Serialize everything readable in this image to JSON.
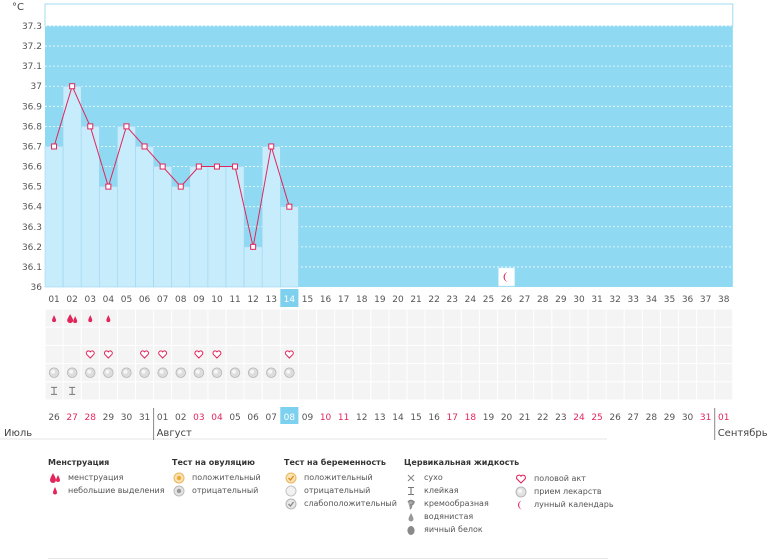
{
  "unit_label": "°C",
  "y_axis": {
    "ticks": [
      "37.3",
      "37.2",
      "37.1",
      "37",
      "36.9",
      "36.8",
      "36.7",
      "36.6",
      "36.5",
      "36.4",
      "36.3",
      "36.2",
      "36.1",
      "36"
    ],
    "min": 36,
    "max": 37.3
  },
  "cycle_days": [
    "01",
    "02",
    "03",
    "04",
    "05",
    "06",
    "07",
    "08",
    "09",
    "10",
    "11",
    "12",
    "13",
    "14",
    "15",
    "16",
    "17",
    "18",
    "19",
    "20",
    "21",
    "22",
    "23",
    "24",
    "25",
    "26",
    "27",
    "28",
    "29",
    "30",
    "31",
    "32",
    "33",
    "34",
    "35",
    "36",
    "37",
    "38"
  ],
  "today_index": 13,
  "dates": [
    {
      "d": "26",
      "red": false
    },
    {
      "d": "27",
      "red": true
    },
    {
      "d": "28",
      "red": true
    },
    {
      "d": "29",
      "red": false
    },
    {
      "d": "30",
      "red": false
    },
    {
      "d": "31",
      "red": false
    },
    {
      "d": "01",
      "red": false
    },
    {
      "d": "02",
      "red": false
    },
    {
      "d": "03",
      "red": true
    },
    {
      "d": "04",
      "red": true
    },
    {
      "d": "05",
      "red": false
    },
    {
      "d": "06",
      "red": false
    },
    {
      "d": "07",
      "red": false
    },
    {
      "d": "08",
      "red": false
    },
    {
      "d": "09",
      "red": false
    },
    {
      "d": "10",
      "red": true
    },
    {
      "d": "11",
      "red": true
    },
    {
      "d": "12",
      "red": false
    },
    {
      "d": "13",
      "red": false
    },
    {
      "d": "14",
      "red": false
    },
    {
      "d": "15",
      "red": false
    },
    {
      "d": "16",
      "red": false
    },
    {
      "d": "17",
      "red": true
    },
    {
      "d": "18",
      "red": true
    },
    {
      "d": "19",
      "red": false
    },
    {
      "d": "20",
      "red": false
    },
    {
      "d": "21",
      "red": false
    },
    {
      "d": "22",
      "red": false
    },
    {
      "d": "23",
      "red": false
    },
    {
      "d": "24",
      "red": true
    },
    {
      "d": "25",
      "red": true
    },
    {
      "d": "26",
      "red": false
    },
    {
      "d": "27",
      "red": false
    },
    {
      "d": "28",
      "red": false
    },
    {
      "d": "29",
      "red": false
    },
    {
      "d": "30",
      "red": false
    },
    {
      "d": "31",
      "red": true
    },
    {
      "d": "01",
      "red": true
    }
  ],
  "months": [
    {
      "label": "Июль",
      "start_index": 0,
      "red": false
    },
    {
      "label": "Август",
      "start_index": 6,
      "red": false
    },
    {
      "label": "Сентябрь",
      "start_index": 37,
      "red": false
    }
  ],
  "temperatures": [
    36.7,
    37.0,
    36.8,
    36.5,
    36.8,
    36.7,
    36.6,
    36.5,
    36.6,
    36.6,
    36.6,
    36.2,
    36.7,
    36.4
  ],
  "rows": {
    "menstruation": [
      {
        "day": 0,
        "type": "small"
      },
      {
        "day": 1,
        "type": "heavy"
      },
      {
        "day": 2,
        "type": "small"
      },
      {
        "day": 3,
        "type": "small"
      }
    ],
    "intercourse_days": [
      2,
      3,
      5,
      6,
      8,
      9,
      13
    ],
    "medication_days": [
      0,
      1,
      2,
      3,
      4,
      5,
      6,
      7,
      8,
      9,
      10,
      11,
      12,
      13
    ],
    "cervical_dry_days": [
      0,
      1
    ],
    "moon_day": 25
  },
  "colors": {
    "sky": "#8fd9f3",
    "bar": "#c7ecfc",
    "bar_edge": "#9fd6ef",
    "line": "#e2265c",
    "today": "#7dd0ee",
    "grid_bg": "#f4f4f4",
    "red_text": "#e2265c"
  },
  "legend": {
    "menstruation": {
      "title": "Менструация",
      "items": [
        {
          "icon": "blood-drops-icon",
          "label": "менструация"
        },
        {
          "icon": "blood-drop-icon",
          "label": "небольшие выделения"
        }
      ]
    },
    "ovulation_test": {
      "title": "Тест на овуляцию",
      "items": [
        {
          "icon": "positive-test-icon",
          "label": "положительный"
        },
        {
          "icon": "negative-test-icon",
          "label": "отрицательный"
        }
      ]
    },
    "pregnancy_test": {
      "title": "Тест на беременность",
      "items": [
        {
          "icon": "pregnancy-positive-icon",
          "label": "положительный"
        },
        {
          "icon": "pregnancy-negative-icon",
          "label": "отрицательный"
        },
        {
          "icon": "pregnancy-weak-icon",
          "label": "слабоположительный"
        }
      ]
    },
    "cervical_fluid": {
      "title": "Цервикальная жидкость",
      "items": [
        {
          "icon": "dry-icon",
          "label": "сухо"
        },
        {
          "icon": "sticky-icon",
          "label": "клейкая"
        },
        {
          "icon": "creamy-icon",
          "label": "кремообразная"
        },
        {
          "icon": "watery-icon",
          "label": "водянистая"
        },
        {
          "icon": "egg-white-icon",
          "label": "яичный белок"
        }
      ]
    },
    "other": {
      "items": [
        {
          "icon": "heart-icon",
          "label": "половой акт"
        },
        {
          "icon": "pill-icon",
          "label": "прием лекарств"
        },
        {
          "icon": "moon-icon",
          "label": "лунный календарь"
        }
      ]
    }
  }
}
